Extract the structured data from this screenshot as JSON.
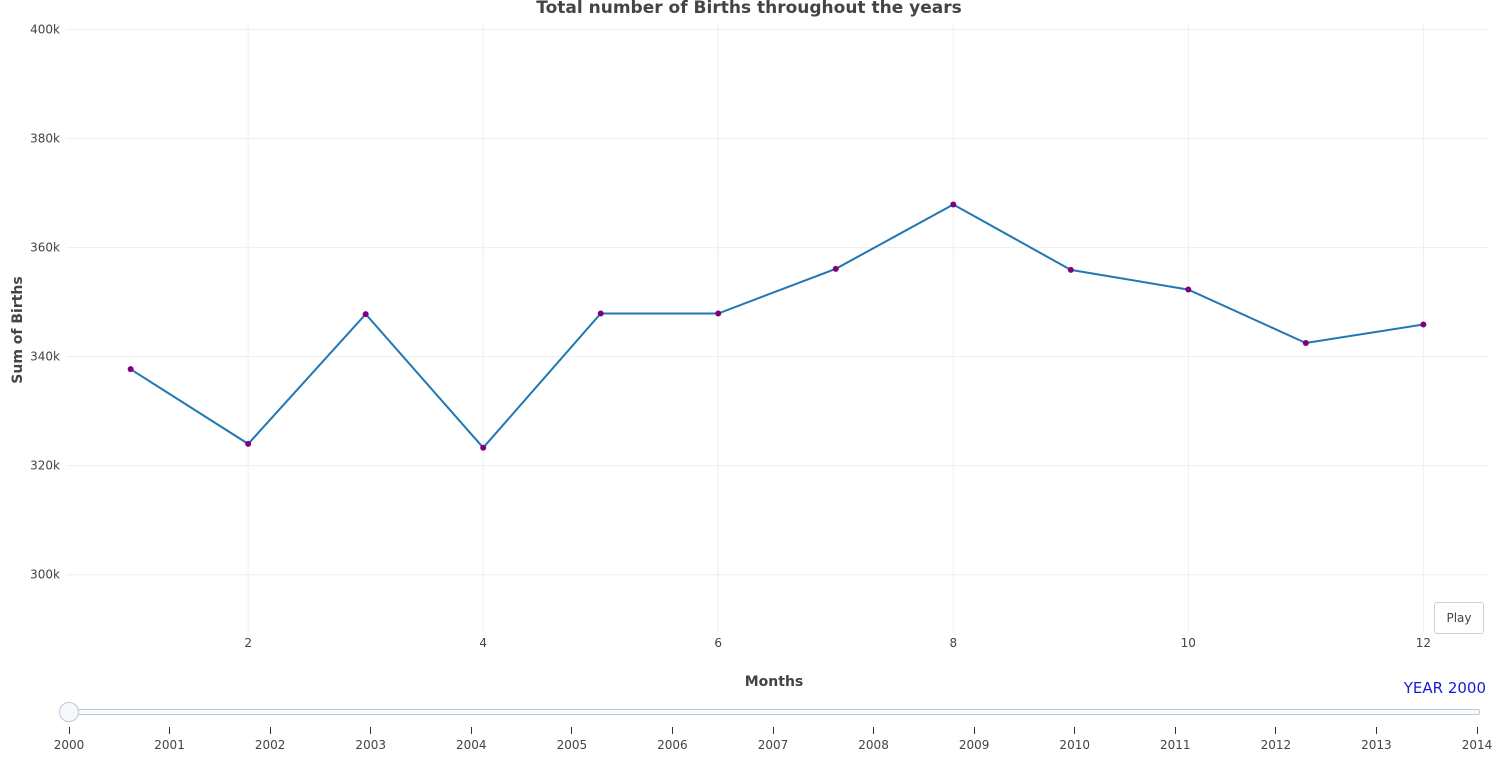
{
  "chart_data": {
    "type": "line",
    "title": "Total number of Births throughout the years",
    "xlabel": "Months",
    "ylabel": "Sum of Births",
    "x": [
      1,
      2,
      3,
      4,
      5,
      6,
      7,
      8,
      9,
      10,
      11,
      12
    ],
    "series": [
      {
        "values": [
          337700,
          324000,
          347800,
          323300,
          347900,
          347900,
          356100,
          367900,
          355900,
          352300,
          342500,
          345900
        ]
      }
    ],
    "xlim": [
      0.45,
      12.55
    ],
    "ylim": [
      289500,
      401000
    ],
    "x_ticks": [
      2,
      4,
      6,
      8,
      10,
      12
    ],
    "x_tick_labels": [
      "2",
      "4",
      "6",
      "8",
      "10",
      "12"
    ],
    "y_ticks": [
      300000,
      320000,
      340000,
      360000,
      380000,
      400000
    ],
    "y_tick_labels": [
      "300k",
      "320k",
      "340k",
      "360k",
      "380k",
      "400k"
    ],
    "grid": true,
    "line_color": "#1f77b4",
    "marker_color": "#800080"
  },
  "controls": {
    "play_label": "Play",
    "current_year_label": "YEAR 2000",
    "slider_years": [
      "2000",
      "2001",
      "2002",
      "2003",
      "2004",
      "2005",
      "2006",
      "2007",
      "2008",
      "2009",
      "2010",
      "2011",
      "2012",
      "2013",
      "2014"
    ],
    "slider_current_index": 0
  }
}
